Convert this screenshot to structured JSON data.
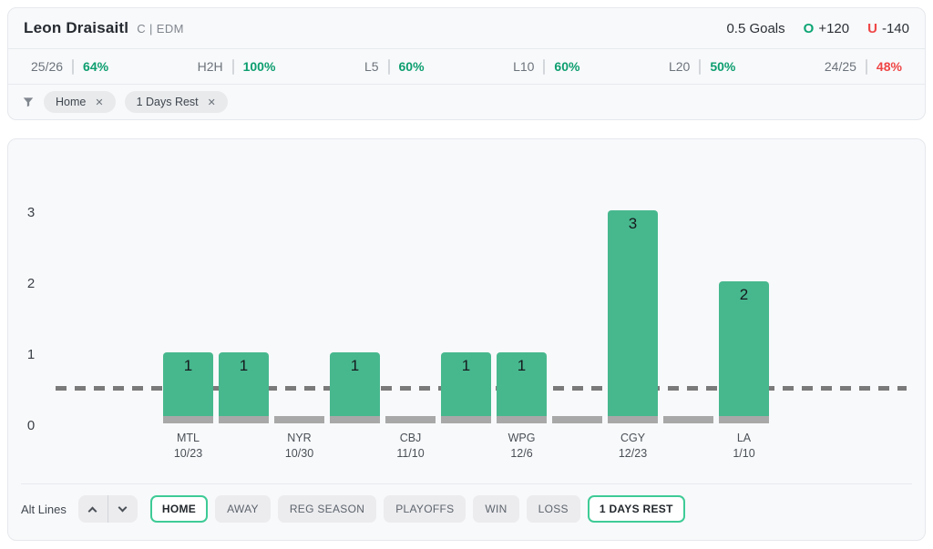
{
  "header": {
    "player": "Leon Draisaitl",
    "position_team": "C | EDM",
    "line": "0.5 Goals",
    "over": {
      "label": "O",
      "odds": "+120",
      "color": "#0ca573"
    },
    "under": {
      "label": "U",
      "odds": "-140",
      "color": "#ef4747"
    }
  },
  "stats": [
    {
      "label": "25/26",
      "value": "64%",
      "color": "#0d9e6f"
    },
    {
      "label": "H2H",
      "value": "100%",
      "color": "#0d9e6f"
    },
    {
      "label": "L5",
      "value": "60%",
      "color": "#0d9e6f"
    },
    {
      "label": "L10",
      "value": "60%",
      "color": "#0d9e6f"
    },
    {
      "label": "L20",
      "value": "50%",
      "color": "#0d9e6f"
    },
    {
      "label": "24/25",
      "value": "48%",
      "color": "#ef4444"
    }
  ],
  "filters": {
    "icon": "funnel-icon",
    "close_glyph": "✕",
    "chips": [
      {
        "label": "Home"
      },
      {
        "label": "1 Days Rest"
      }
    ]
  },
  "chart_data": {
    "type": "bar",
    "yticks": [
      0,
      1,
      2,
      3
    ],
    "ylim": [
      0,
      3.5
    ],
    "line_value": 0.5,
    "bars": [
      {
        "value": 1,
        "opponent": "MTL",
        "date": "10/23"
      },
      {
        "value": 1,
        "opponent": "",
        "date": ""
      },
      {
        "value": 0,
        "opponent": "NYR",
        "date": "10/30"
      },
      {
        "value": 1,
        "opponent": "",
        "date": ""
      },
      {
        "value": 0,
        "opponent": "CBJ",
        "date": "11/10"
      },
      {
        "value": 1,
        "opponent": "",
        "date": ""
      },
      {
        "value": 1,
        "opponent": "WPG",
        "date": "12/6"
      },
      {
        "value": 0,
        "opponent": "",
        "date": ""
      },
      {
        "value": 3,
        "opponent": "CGY",
        "date": "12/23"
      },
      {
        "value": 0,
        "opponent": "",
        "date": ""
      },
      {
        "value": 2,
        "opponent": "LA",
        "date": "1/10"
      }
    ]
  },
  "controls": {
    "alt_lines_label": "Alt Lines",
    "stepper_icons": [
      "chevron-up-icon",
      "chevron-down-icon"
    ],
    "buttons": [
      {
        "label": "HOME",
        "active": true
      },
      {
        "label": "AWAY",
        "active": false
      },
      {
        "label": "REG SEASON",
        "active": false
      },
      {
        "label": "PLAYOFFS",
        "active": false
      },
      {
        "label": "WIN",
        "active": false
      },
      {
        "label": "LOSS",
        "active": false
      },
      {
        "label": "1 DAYS REST",
        "active": true
      }
    ]
  },
  "colors": {
    "accent_green": "#3ecb96",
    "bar_green": "#47b88e",
    "bar_base_gray": "#a8a8a8",
    "dashed_line": "#7a7a7a"
  }
}
